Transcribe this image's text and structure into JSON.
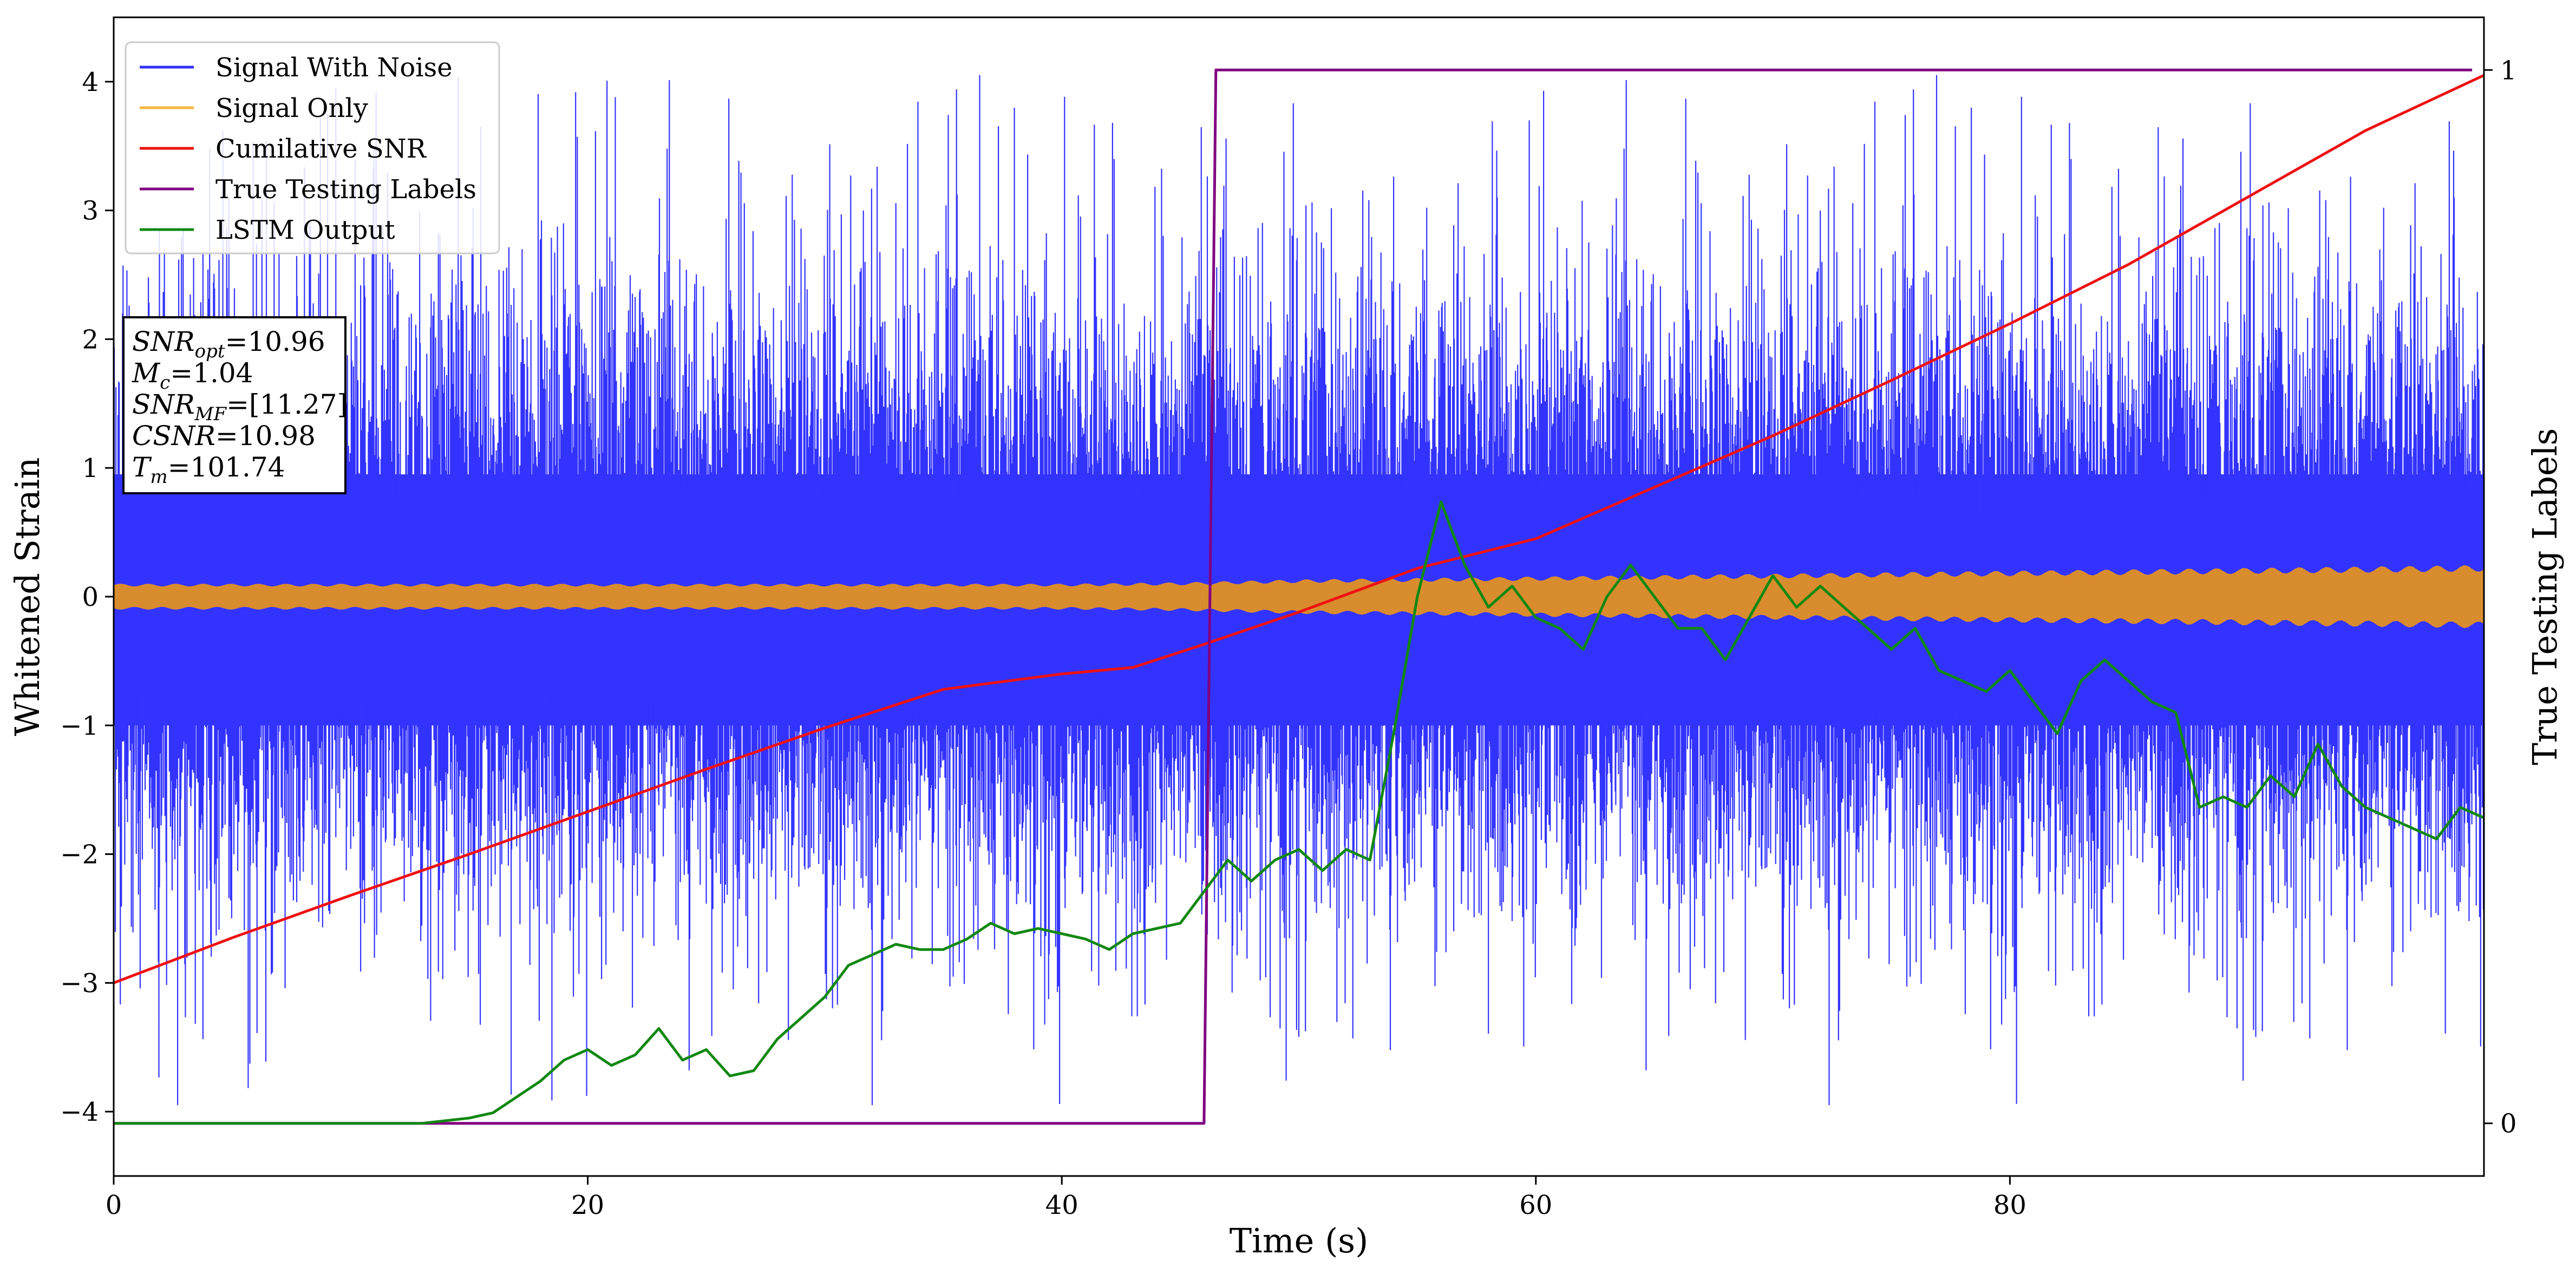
{
  "chart_data": {
    "type": "line",
    "xlabel": "Time (s)",
    "ylabel": "Whitened Strain",
    "y2label": "True Testing Labels",
    "xlim": [
      0,
      100
    ],
    "ylim": [
      -4.5,
      4.5
    ],
    "y2lim": [
      -0.05,
      1.05
    ],
    "x_ticks": [
      0,
      20,
      40,
      60,
      80
    ],
    "y_ticks": [
      -4,
      -3,
      -2,
      -1,
      0,
      1,
      2,
      3,
      4
    ],
    "y_tick_labels": [
      "−4",
      "−3",
      "−2",
      "−1",
      "0",
      "1",
      "2",
      "3",
      "4"
    ],
    "y2_ticks": [
      0,
      1
    ],
    "legend_position": "upper left",
    "legend": [
      "Signal With Noise",
      "Signal Only",
      "Cumilative SNR",
      "True Testing Labels",
      "LSTM Output"
    ],
    "colors": {
      "noise": "#3333ff",
      "signal": "#d98c2e",
      "signal_legend": "#f7b640",
      "snr": "#ee1111",
      "labels": "#800080",
      "lstm": "#118811"
    },
    "annotation": {
      "lines": [
        {
          "main": "SNR",
          "sub": "opt",
          "rest": "=10.96"
        },
        {
          "main": "M",
          "sub": "c",
          "rest": "=1.04"
        },
        {
          "main": "SNR",
          "sub": "MF",
          "rest": "=[11.27]"
        },
        {
          "main": "CSNR",
          "sub": "",
          "rest": "=10.98"
        },
        {
          "main": "T",
          "sub": "m",
          "rest": "=101.74"
        }
      ]
    },
    "series": [
      {
        "name": "Signal With Noise",
        "description_values": {
          "std": 0.95,
          "max": 4.1,
          "min": -3.95
        }
      },
      {
        "name": "Signal Only",
        "envelope_x": [
          0,
          10,
          20,
          30,
          40,
          45,
          50,
          55,
          60,
          70,
          80,
          90,
          100
        ],
        "envelope_amp": [
          0.09,
          0.09,
          0.09,
          0.09,
          0.09,
          0.1,
          0.12,
          0.13,
          0.14,
          0.16,
          0.18,
          0.2,
          0.22
        ]
      },
      {
        "name": "Cumilative SNR",
        "x": [
          0,
          5,
          10,
          15,
          20,
          25,
          30,
          35,
          40,
          43,
          46,
          50,
          55,
          60,
          65,
          70,
          75,
          80,
          85,
          90,
          95,
          100
        ],
        "y": [
          -3.0,
          -2.65,
          -2.32,
          -2.0,
          -1.67,
          -1.34,
          -1.02,
          -0.72,
          -0.6,
          -0.55,
          -0.37,
          -0.12,
          0.22,
          0.45,
          0.85,
          1.25,
          1.68,
          2.12,
          2.58,
          3.1,
          3.62,
          4.05
        ]
      },
      {
        "name": "True Testing Labels",
        "x": [
          0,
          46.0,
          46.5,
          99.5
        ],
        "y": [
          0,
          0,
          1,
          1
        ]
      },
      {
        "name": "LSTM Output",
        "x": [
          0,
          10,
          13,
          15,
          16,
          17,
          18,
          19,
          20,
          21,
          22,
          23,
          24,
          25,
          26,
          27,
          28,
          29,
          30,
          31,
          32,
          33,
          34,
          35,
          36,
          37,
          38,
          39,
          40,
          41,
          42,
          43,
          44,
          45,
          46,
          47,
          48,
          49,
          50,
          51,
          52,
          53,
          54,
          55,
          56,
          57,
          58,
          59,
          60,
          61,
          62,
          63,
          64,
          65,
          66,
          67,
          68,
          69,
          70,
          71,
          72,
          73,
          74,
          75,
          76,
          77,
          78,
          79,
          80,
          81,
          82,
          83,
          84,
          85,
          86,
          87,
          88,
          89,
          90,
          91,
          92,
          93,
          94,
          95,
          96,
          97,
          98,
          99,
          100
        ],
        "y": [
          0,
          0,
          0.0,
          0.005,
          0.01,
          0.025,
          0.04,
          0.06,
          0.07,
          0.055,
          0.065,
          0.09,
          0.06,
          0.07,
          0.045,
          0.05,
          0.08,
          0.1,
          0.12,
          0.15,
          0.16,
          0.17,
          0.165,
          0.165,
          0.175,
          0.19,
          0.18,
          0.185,
          0.18,
          0.175,
          0.165,
          0.18,
          0.185,
          0.19,
          0.22,
          0.25,
          0.23,
          0.25,
          0.26,
          0.24,
          0.26,
          0.25,
          0.37,
          0.5,
          0.59,
          0.53,
          0.49,
          0.51,
          0.48,
          0.47,
          0.45,
          0.5,
          0.53,
          0.5,
          0.47,
          0.47,
          0.44,
          0.48,
          0.52,
          0.49,
          0.51,
          0.49,
          0.47,
          0.45,
          0.47,
          0.43,
          0.42,
          0.41,
          0.43,
          0.4,
          0.37,
          0.42,
          0.44,
          0.42,
          0.4,
          0.39,
          0.3,
          0.31,
          0.3,
          0.33,
          0.31,
          0.36,
          0.32,
          0.3,
          0.29,
          0.28,
          0.27,
          0.3,
          0.29
        ]
      }
    ]
  }
}
